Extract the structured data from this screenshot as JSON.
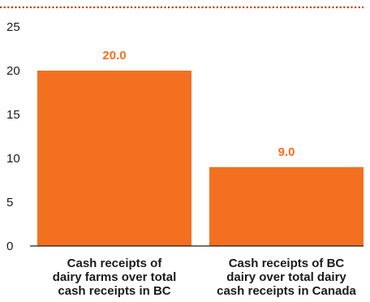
{
  "chart_data": {
    "type": "bar",
    "categories": [
      [
        "Cash receipts of",
        "dairy farms over total",
        "cash receipts in BC"
      ],
      [
        "Cash receipts of BC",
        "dairy over total dairy",
        "cash receipts in Canada"
      ]
    ],
    "values": [
      20.0,
      9.0
    ],
    "value_labels": [
      "20.0",
      "9.0"
    ],
    "title": "",
    "xlabel": "",
    "ylabel": "",
    "ylim": [
      0,
      25
    ],
    "yticks": [
      0,
      5,
      10,
      15,
      20,
      25
    ],
    "grid": false,
    "legend": "none",
    "colors": {
      "bar": "#F37021",
      "label": "#F37021",
      "axis": "#1a1a1a",
      "dotted_rule": "#C2410C"
    }
  }
}
